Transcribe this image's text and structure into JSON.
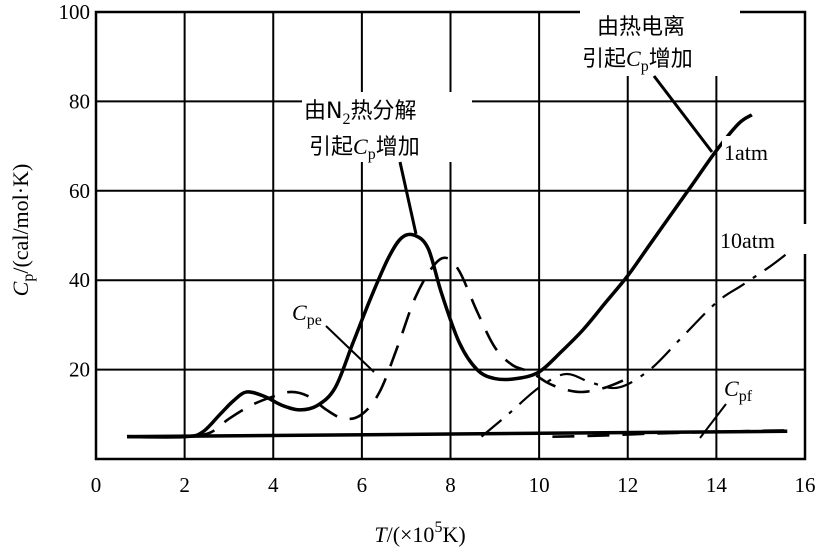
{
  "chart_data": {
    "type": "line",
    "xlabel": {
      "var": "T",
      "rest": "/(×10",
      "sup": "5",
      "tail": "K)"
    },
    "ylabel": {
      "var": "C",
      "sub": "p",
      "rest": "/(cal/mol·K)"
    },
    "xlim": [
      0,
      16
    ],
    "ylim": [
      0,
      100
    ],
    "x_ticks": [
      "0",
      "2",
      "4",
      "6",
      "8",
      "10",
      "12",
      "14",
      "16"
    ],
    "y_ticks": [
      "20",
      "40",
      "60",
      "80",
      "100"
    ],
    "grid": true,
    "series": [
      {
        "name": "1atm",
        "style": "solid",
        "x": [
          0.7,
          2.0,
          2.4,
          2.8,
          3.1,
          3.4,
          3.8,
          4.2,
          4.6,
          5.0,
          5.4,
          5.8,
          6.2,
          6.6,
          6.9,
          7.2,
          7.5,
          7.8,
          8.2,
          8.6,
          9.0,
          9.5,
          10.0,
          10.5,
          11.0,
          11.5,
          12.0,
          12.5,
          13.0,
          13.5,
          14.0,
          14.5,
          14.8
        ],
        "y": [
          5,
          5,
          6,
          10,
          13,
          15,
          14,
          12,
          11,
          12,
          16,
          26,
          36,
          45,
          49.5,
          50,
          47,
          37,
          26,
          20,
          18,
          18,
          19.5,
          24,
          29,
          35,
          41,
          48,
          55,
          62,
          69,
          75,
          77
        ]
      },
      {
        "name": "Cpe",
        "style": "dashed",
        "x": [
          2.2,
          2.6,
          3.0,
          3.5,
          4.0,
          4.4,
          4.8,
          5.2,
          5.6,
          6.0,
          6.4,
          6.8,
          7.2,
          7.6,
          7.9,
          8.2,
          8.6,
          9.0,
          9.4,
          9.8,
          10.2,
          10.6,
          11.0,
          11.5,
          12.0
        ],
        "y": [
          5,
          6,
          9,
          12,
          14,
          15,
          14,
          11,
          9,
          10,
          15,
          25,
          36,
          43,
          45,
          42,
          33,
          25,
          21,
          19.5,
          17,
          15.5,
          15,
          16,
          18
        ]
      },
      {
        "name": "10atm",
        "style": "dash-dot",
        "x": [
          8.7,
          9.3,
          10.0,
          10.6,
          11.2,
          11.8,
          12.5,
          13.2,
          14.0,
          14.6,
          15.2,
          15.6
        ],
        "y": [
          5,
          10,
          16,
          19,
          17,
          16,
          20,
          27,
          35,
          39,
          43,
          46
        ]
      },
      {
        "name": "Cpe-tail",
        "style": "dashed",
        "x": [
          10.3,
          11.3,
          12.3,
          13.3,
          14.2,
          15.0,
          15.6
        ],
        "y": [
          5,
          5.2,
          5.6,
          5.9,
          6.1,
          6.3,
          6.4
        ]
      },
      {
        "name": "Cpf",
        "style": "solid",
        "x": [
          0.7,
          15.6
        ],
        "y": [
          5,
          6.2
        ]
      }
    ],
    "annotations": [
      {
        "line1": "由N",
        "sub": "2",
        "rest": "热分解",
        "line2a": "引起",
        "line2var": "C",
        "line2sub": "p",
        "line2b": "增加"
      },
      {
        "line1": "由热电离",
        "line2a": "引起",
        "line2var": "C",
        "line2sub": "p",
        "line2b": "增加"
      }
    ],
    "series_labels": {
      "atm1": "1atm",
      "atm10": "10atm",
      "cpe_var": "C",
      "cpe_sub": "pe",
      "cpf_var": "C",
      "cpf_sub": "pf"
    }
  }
}
